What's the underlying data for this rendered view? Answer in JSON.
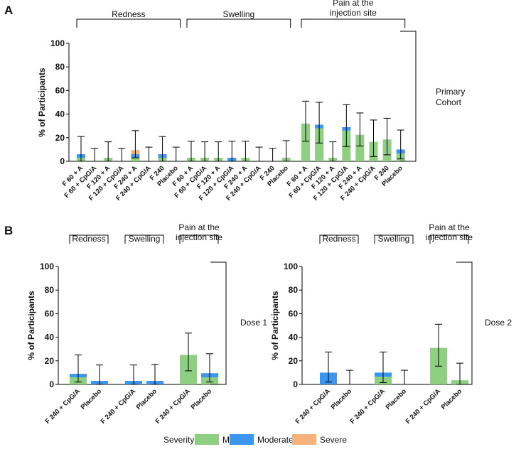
{
  "colors": {
    "Mild": "#8ecf82",
    "Moderate": "#3d96ee",
    "Severe": "#f6b27c"
  },
  "legend": {
    "title": "Severity:",
    "items": [
      "Mild",
      "Moderate",
      "Severe"
    ]
  },
  "chart_data": [
    {
      "panel": "A",
      "type": "bar",
      "stacked": true,
      "side_label": [
        "Primary",
        "Cohort"
      ],
      "ylabel": "% of Participants",
      "ylim": [
        0,
        100
      ],
      "yticks": [
        0,
        20,
        40,
        60,
        80,
        100
      ],
      "groups": [
        {
          "label": [
            "Redness"
          ],
          "categories": [
            "F 60 + A",
            "F 60 + CpG/A",
            "F 120 + A",
            "F 120 + CpG/A",
            "F 240 + A",
            "F 240 + CpG/A",
            "F 240",
            "Placebo"
          ],
          "series": [
            {
              "name": "Mild",
              "values": [
                3,
                0,
                3,
                0,
                3,
                0,
                3,
                0
              ]
            },
            {
              "name": "Moderate",
              "values": [
                3,
                0,
                0,
                0,
                3,
                0,
                3,
                0
              ]
            },
            {
              "name": "Severe",
              "values": [
                0,
                0,
                0,
                0,
                3.5,
                0,
                0,
                0
              ]
            }
          ],
          "error_bars": [
            [
              0,
              21
            ],
            [
              0,
              11
            ],
            [
              0,
              16.5
            ],
            [
              0,
              11
            ],
            [
              3,
              26
            ],
            [
              0,
              12
            ],
            [
              0,
              21
            ],
            [
              0,
              12
            ]
          ]
        },
        {
          "label": [
            "Swelling"
          ],
          "categories": [
            "F 60 + A",
            "F 60 + CpG/A",
            "F 120 + A",
            "F 120 + CpG/A",
            "F 240 + A",
            "F 240 + CpG/A",
            "F 240",
            "Placebo"
          ],
          "series": [
            {
              "name": "Mild",
              "values": [
                3,
                3,
                3,
                0,
                3,
                0,
                0,
                3
              ]
            },
            {
              "name": "Moderate",
              "values": [
                0,
                0,
                0,
                3,
                0,
                0,
                0,
                0
              ]
            },
            {
              "name": "Severe",
              "values": [
                0,
                0,
                0,
                0,
                0,
                0,
                0,
                0
              ]
            }
          ],
          "error_bars": [
            [
              0,
              17
            ],
            [
              0,
              16.5
            ],
            [
              0,
              16.5
            ],
            [
              0,
              17
            ],
            [
              0,
              17
            ],
            [
              0,
              12
            ],
            [
              0,
              11
            ],
            [
              0,
              17.5
            ]
          ]
        },
        {
          "label": [
            "Pain at the",
            "injection site"
          ],
          "categories": [
            "F 60 + A",
            "F 60 + CpG/A",
            "F 120 + A",
            "F 120 + CpG/A",
            "F 240 + A",
            "F 240 + CpG/A",
            "F 240",
            "Placebo"
          ],
          "series": [
            {
              "name": "Mild",
              "values": [
                32,
                28,
                3,
                26,
                22.5,
                16.5,
                18.5,
                6.5
              ]
            },
            {
              "name": "Moderate",
              "values": [
                0,
                3,
                0,
                3,
                0,
                0,
                0,
                3.5
              ]
            },
            {
              "name": "Severe",
              "values": [
                0,
                0,
                0,
                0,
                0,
                0,
                0,
                0
              ]
            }
          ],
          "error_bars": [
            [
              17,
              51
            ],
            [
              15.5,
              50
            ],
            [
              0,
              16.5
            ],
            [
              12.5,
              48
            ],
            [
              13,
              41
            ],
            [
              4,
              35
            ],
            [
              5.5,
              36.5
            ],
            [
              2,
              26.5
            ]
          ]
        }
      ]
    },
    {
      "panel": "B",
      "type": "bar",
      "stacked": true,
      "side_label": [
        "Dose 1"
      ],
      "ylabel": "% of Participants",
      "ylim": [
        0,
        100
      ],
      "yticks": [
        0,
        20,
        40,
        60,
        80,
        100
      ],
      "groups": [
        {
          "label": [
            "Redness"
          ],
          "categories": [
            "F 240 + CpG/A",
            "Placebo"
          ],
          "series": [
            {
              "name": "Mild",
              "values": [
                6,
                0
              ]
            },
            {
              "name": "Moderate",
              "values": [
                3,
                3
              ]
            },
            {
              "name": "Severe",
              "values": [
                0,
                0
              ]
            }
          ],
          "error_bars": [
            [
              2,
              25
            ],
            [
              0,
              16.5
            ]
          ]
        },
        {
          "label": [
            "Swelling"
          ],
          "categories": [
            "F 240 + CpG/A",
            "Placebo"
          ],
          "series": [
            {
              "name": "Mild",
              "values": [
                0,
                0
              ]
            },
            {
              "name": "Moderate",
              "values": [
                3,
                3
              ]
            },
            {
              "name": "Severe",
              "values": [
                0,
                0
              ]
            }
          ],
          "error_bars": [
            [
              0,
              16.5
            ],
            [
              0,
              17
            ]
          ]
        },
        {
          "label": [
            "Pain at the",
            "injection site"
          ],
          "categories": [
            "F 240 + CpG/A",
            "Placebo"
          ],
          "series": [
            {
              "name": "Mild",
              "values": [
                25,
                6
              ]
            },
            {
              "name": "Moderate",
              "values": [
                0,
                3.5
              ]
            },
            {
              "name": "Severe",
              "values": [
                0,
                0
              ]
            }
          ],
          "error_bars": [
            [
              11.5,
              43.5
            ],
            [
              2,
              26
            ]
          ]
        }
      ]
    },
    {
      "panel": "",
      "type": "bar",
      "stacked": true,
      "side_label": [
        "Dose 2"
      ],
      "ylabel": "% of Participants",
      "ylim": [
        0,
        100
      ],
      "yticks": [
        0,
        20,
        40,
        60,
        80,
        100
      ],
      "groups": [
        {
          "label": [
            "Redness"
          ],
          "categories": [
            "F 240 + CpG/A",
            "Placebo"
          ],
          "series": [
            {
              "name": "Mild",
              "values": [
                0,
                0
              ]
            },
            {
              "name": "Moderate",
              "values": [
                10,
                0
              ]
            },
            {
              "name": "Severe",
              "values": [
                0,
                0
              ]
            }
          ],
          "error_bars": [
            [
              2,
              27.5
            ],
            [
              0,
              12
            ]
          ]
        },
        {
          "label": [
            "Swelling"
          ],
          "categories": [
            "F 240 + CpG/A",
            "Placebo"
          ],
          "series": [
            {
              "name": "Mild",
              "values": [
                6.5,
                0
              ]
            },
            {
              "name": "Moderate",
              "values": [
                3.5,
                0
              ]
            },
            {
              "name": "Severe",
              "values": [
                0,
                0
              ]
            }
          ],
          "error_bars": [
            [
              1.5,
              27.5
            ],
            [
              0,
              12
            ]
          ]
        },
        {
          "label": [
            "Pain at the",
            "injection site"
          ],
          "categories": [
            "F 240 + CpG/A",
            "Placebo"
          ],
          "series": [
            {
              "name": "Mild",
              "values": [
                31,
                3.5
              ]
            },
            {
              "name": "Moderate",
              "values": [
                0,
                0
              ]
            },
            {
              "name": "Severe",
              "values": [
                0,
                0
              ]
            }
          ],
          "error_bars": [
            [
              15.5,
              51
            ],
            [
              0,
              18
            ]
          ]
        }
      ]
    }
  ]
}
